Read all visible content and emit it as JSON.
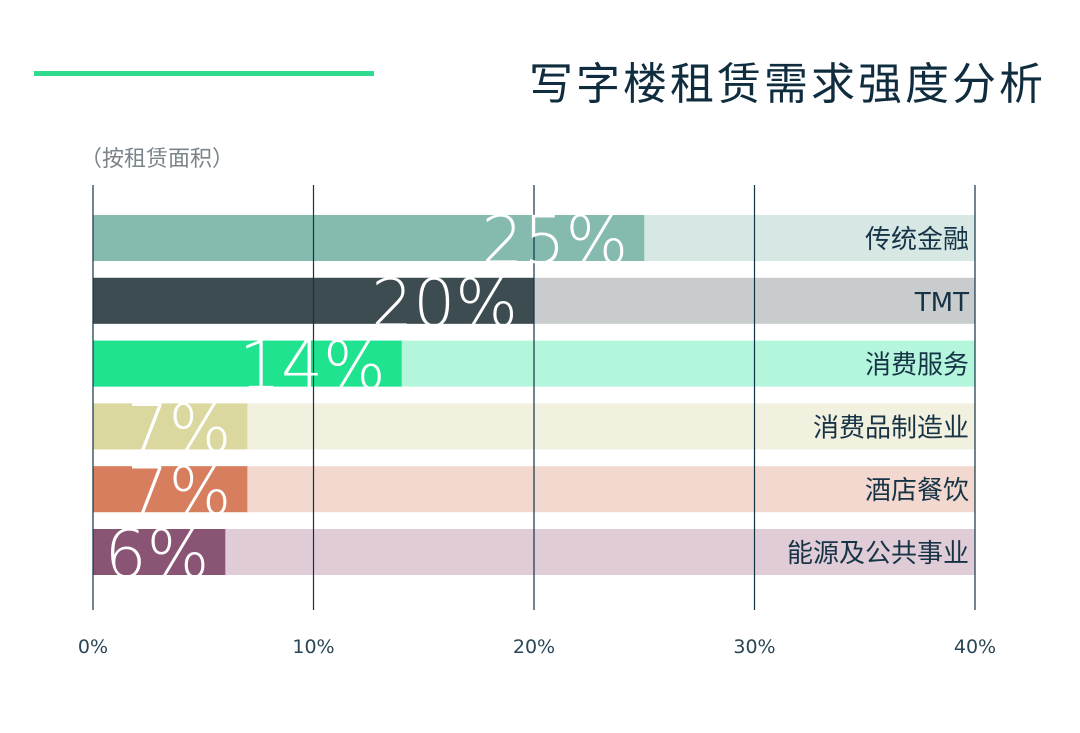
{
  "header": {
    "title": "写字楼租赁需求强度分析",
    "subtitle": "（按租赁面积）",
    "accent_color": "#2fdb8d"
  },
  "chart_data": {
    "type": "bar",
    "orientation": "horizontal",
    "categories": [
      "传统金融",
      "TMT",
      "消费服务",
      "消费品制造业",
      "酒店餐饮",
      "能源及公共事业"
    ],
    "values": [
      25,
      20,
      14,
      7,
      7,
      6
    ],
    "data_labels": [
      "25%",
      "20%",
      "14%",
      "7%",
      "7%",
      "6%"
    ],
    "unit": "%",
    "xlim": [
      0,
      40
    ],
    "x_ticks": [
      0,
      10,
      20,
      30,
      40
    ],
    "x_tick_labels": [
      "0%",
      "10%",
      "20%",
      "30%",
      "40%"
    ],
    "grid": true,
    "bar_colors": [
      "#84bbae",
      "#3d4c50",
      "#1fe38f",
      "#dad89e",
      "#d67e5e",
      "#8a5474"
    ],
    "track_colors": [
      "#d7e8e4",
      "#c8cccd",
      "#b3f6dc",
      "#f2f0de",
      "#f2d8cf",
      "#e0ccd7"
    ]
  }
}
